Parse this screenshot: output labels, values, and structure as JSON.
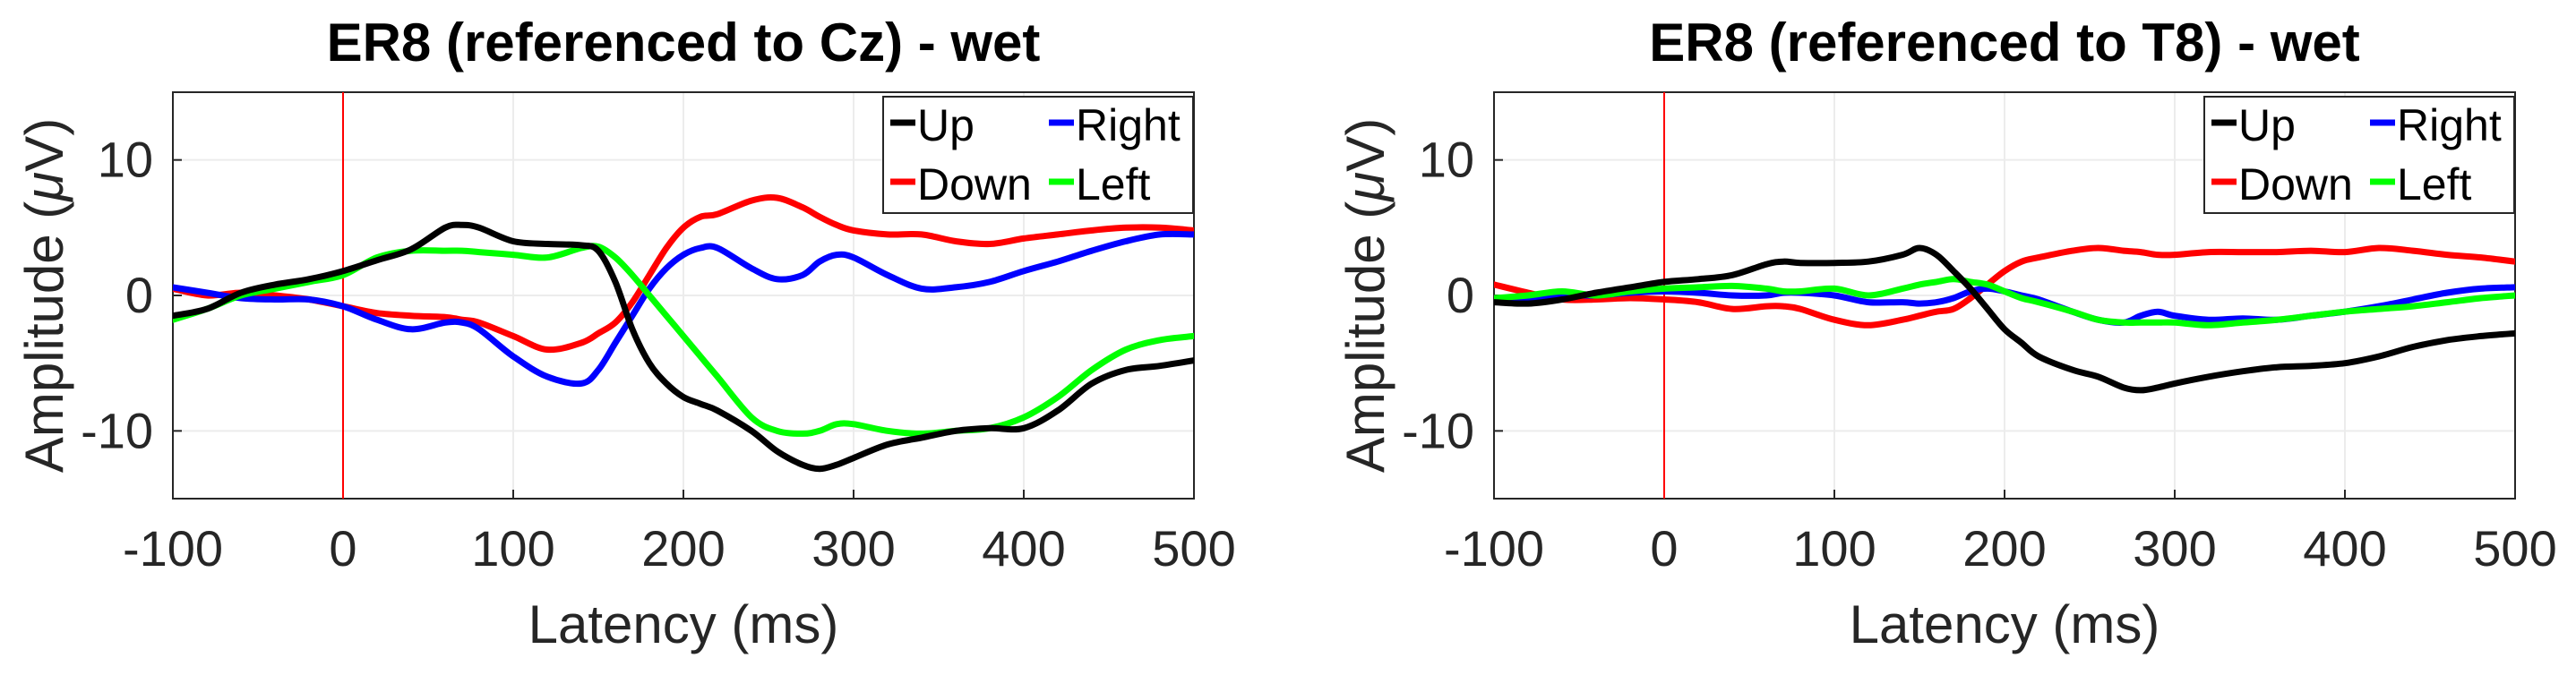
{
  "chart_data": [
    {
      "type": "line",
      "title": "ER8 (referenced to Cz) - wet",
      "xlabel": "Latency (ms)",
      "ylabel_main": "Amplitude (",
      "ylabel_mu": "μ",
      "ylabel_unit": "V)",
      "xlim": [
        -100,
        500
      ],
      "ylim": [
        -15,
        15
      ],
      "xticks": [
        -100,
        0,
        100,
        200,
        300,
        400,
        500
      ],
      "xtick_labels": [
        "-100",
        "0",
        "100",
        "200",
        "300",
        "400",
        "500"
      ],
      "yticks": [
        -10,
        0,
        10
      ],
      "ytick_labels": [
        "-10",
        "0",
        "10"
      ],
      "grid": true,
      "legend_position": "top-right",
      "legend_columns": 2,
      "marker_line": {
        "x": 0,
        "color": "#ff0000"
      },
      "x": [
        -100,
        -80,
        -60,
        -40,
        -20,
        0,
        20,
        40,
        60,
        70,
        80,
        100,
        120,
        140,
        150,
        160,
        170,
        180,
        190,
        200,
        210,
        220,
        240,
        255,
        270,
        280,
        290,
        300,
        320,
        340,
        360,
        380,
        400,
        420,
        440,
        460,
        480,
        500
      ],
      "series": [
        {
          "name": "Up",
          "color": "#000000",
          "values": [
            -1.5,
            -1.0,
            0.2,
            0.8,
            1.2,
            1.8,
            2.6,
            3.4,
            5.0,
            5.2,
            5.0,
            4.0,
            3.8,
            3.7,
            3.3,
            1.0,
            -2.5,
            -5.0,
            -6.5,
            -7.5,
            -8.0,
            -8.5,
            -10.0,
            -11.5,
            -12.5,
            -12.8,
            -12.5,
            -12.0,
            -11.0,
            -10.5,
            -10.0,
            -9.8,
            -9.8,
            -8.5,
            -6.5,
            -5.5,
            -5.2,
            -4.8
          ]
        },
        {
          "name": "Down",
          "color": "#ff0000",
          "values": [
            0.5,
            0.0,
            0.2,
            0.0,
            -0.3,
            -0.8,
            -1.3,
            -1.5,
            -1.6,
            -1.8,
            -2.0,
            -3.0,
            -4.0,
            -3.5,
            -2.8,
            -2.0,
            -0.5,
            1.5,
            3.5,
            5.0,
            5.8,
            6.0,
            7.0,
            7.2,
            6.5,
            5.8,
            5.2,
            4.8,
            4.5,
            4.5,
            4.0,
            3.8,
            4.2,
            4.5,
            4.8,
            5.0,
            5.0,
            4.8
          ]
        },
        {
          "name": "Right",
          "color": "#0000ff",
          "values": [
            0.6,
            0.2,
            -0.2,
            -0.3,
            -0.3,
            -0.8,
            -1.8,
            -2.5,
            -2.0,
            -2.0,
            -2.5,
            -4.5,
            -6.0,
            -6.5,
            -5.5,
            -3.5,
            -1.5,
            0.5,
            2.0,
            3.0,
            3.5,
            3.5,
            2.0,
            1.2,
            1.5,
            2.5,
            3.0,
            2.8,
            1.5,
            0.5,
            0.6,
            1.0,
            1.8,
            2.5,
            3.3,
            4.0,
            4.5,
            4.5
          ]
        },
        {
          "name": "Left",
          "color": "#00ff00",
          "values": [
            -1.8,
            -1.0,
            0.0,
            0.5,
            1.0,
            1.5,
            2.8,
            3.3,
            3.3,
            3.3,
            3.2,
            3.0,
            2.8,
            3.5,
            3.6,
            2.8,
            1.5,
            0.0,
            -1.5,
            -3.0,
            -4.5,
            -6.0,
            -9.0,
            -10.0,
            -10.2,
            -10.0,
            -9.5,
            -9.5,
            -10.0,
            -10.2,
            -10.0,
            -9.8,
            -9.0,
            -7.5,
            -5.5,
            -4.0,
            -3.3,
            -3.0
          ]
        }
      ]
    },
    {
      "type": "line",
      "title": "ER8 (referenced to T8) - wet",
      "xlabel": "Latency (ms)",
      "ylabel_main": "Amplitude (",
      "ylabel_mu": "μ",
      "ylabel_unit": "V)",
      "xlim": [
        -100,
        500
      ],
      "ylim": [
        -15,
        15
      ],
      "xticks": [
        -100,
        0,
        100,
        200,
        300,
        400,
        500
      ],
      "xtick_labels": [
        "-100",
        "0",
        "100",
        "200",
        "300",
        "400",
        "500"
      ],
      "yticks": [
        -10,
        0,
        10
      ],
      "ytick_labels": [
        "-10",
        "0",
        "10"
      ],
      "grid": true,
      "legend_position": "top-right",
      "legend_columns": 2,
      "marker_line": {
        "x": 0,
        "color": "#ff0000"
      },
      "x": [
        -100,
        -80,
        -60,
        -40,
        -20,
        0,
        20,
        40,
        60,
        70,
        80,
        100,
        120,
        140,
        150,
        160,
        170,
        180,
        190,
        200,
        210,
        220,
        240,
        255,
        270,
        280,
        290,
        300,
        320,
        340,
        360,
        380,
        400,
        420,
        440,
        460,
        480,
        500
      ],
      "series": [
        {
          "name": "Up",
          "color": "#000000",
          "values": [
            -0.5,
            -0.6,
            -0.3,
            0.2,
            0.6,
            1.0,
            1.2,
            1.5,
            2.3,
            2.5,
            2.4,
            2.4,
            2.5,
            3.0,
            3.5,
            3.0,
            1.8,
            0.5,
            -1.0,
            -2.5,
            -3.5,
            -4.5,
            -5.5,
            -6.0,
            -6.8,
            -7.0,
            -6.8,
            -6.5,
            -6.0,
            -5.6,
            -5.3,
            -5.2,
            -5.0,
            -4.5,
            -3.8,
            -3.3,
            -3.0,
            -2.8
          ]
        },
        {
          "name": "Down",
          "color": "#ff0000",
          "values": [
            0.8,
            0.2,
            -0.3,
            -0.3,
            -0.2,
            -0.3,
            -0.5,
            -1.0,
            -0.8,
            -0.8,
            -1.0,
            -1.8,
            -2.2,
            -1.8,
            -1.5,
            -1.2,
            -1.0,
            -0.2,
            0.8,
            1.8,
            2.5,
            2.8,
            3.3,
            3.5,
            3.3,
            3.2,
            3.0,
            3.0,
            3.2,
            3.2,
            3.2,
            3.3,
            3.2,
            3.5,
            3.3,
            3.0,
            2.8,
            2.5
          ]
        },
        {
          "name": "Right",
          "color": "#0000ff",
          "values": [
            -0.3,
            -0.4,
            0.0,
            0.0,
            0.2,
            0.3,
            0.2,
            0.0,
            0.0,
            0.2,
            0.2,
            0.0,
            -0.5,
            -0.5,
            -0.6,
            -0.5,
            -0.2,
            0.3,
            0.5,
            0.3,
            0.0,
            -0.3,
            -1.2,
            -1.8,
            -2.0,
            -1.5,
            -1.2,
            -1.5,
            -1.8,
            -1.7,
            -1.8,
            -1.5,
            -1.2,
            -0.8,
            -0.3,
            0.2,
            0.5,
            0.6
          ]
        },
        {
          "name": "Left",
          "color": "#00ff00",
          "values": [
            -0.2,
            0.0,
            0.3,
            0.0,
            0.3,
            0.5,
            0.6,
            0.7,
            0.5,
            0.3,
            0.3,
            0.5,
            0.0,
            0.5,
            0.8,
            1.0,
            1.2,
            1.0,
            0.8,
            0.3,
            -0.2,
            -0.5,
            -1.2,
            -1.8,
            -2.0,
            -2.0,
            -2.0,
            -2.0,
            -2.2,
            -2.0,
            -1.8,
            -1.5,
            -1.2,
            -1.0,
            -0.8,
            -0.5,
            -0.2,
            0.0
          ]
        }
      ]
    }
  ]
}
